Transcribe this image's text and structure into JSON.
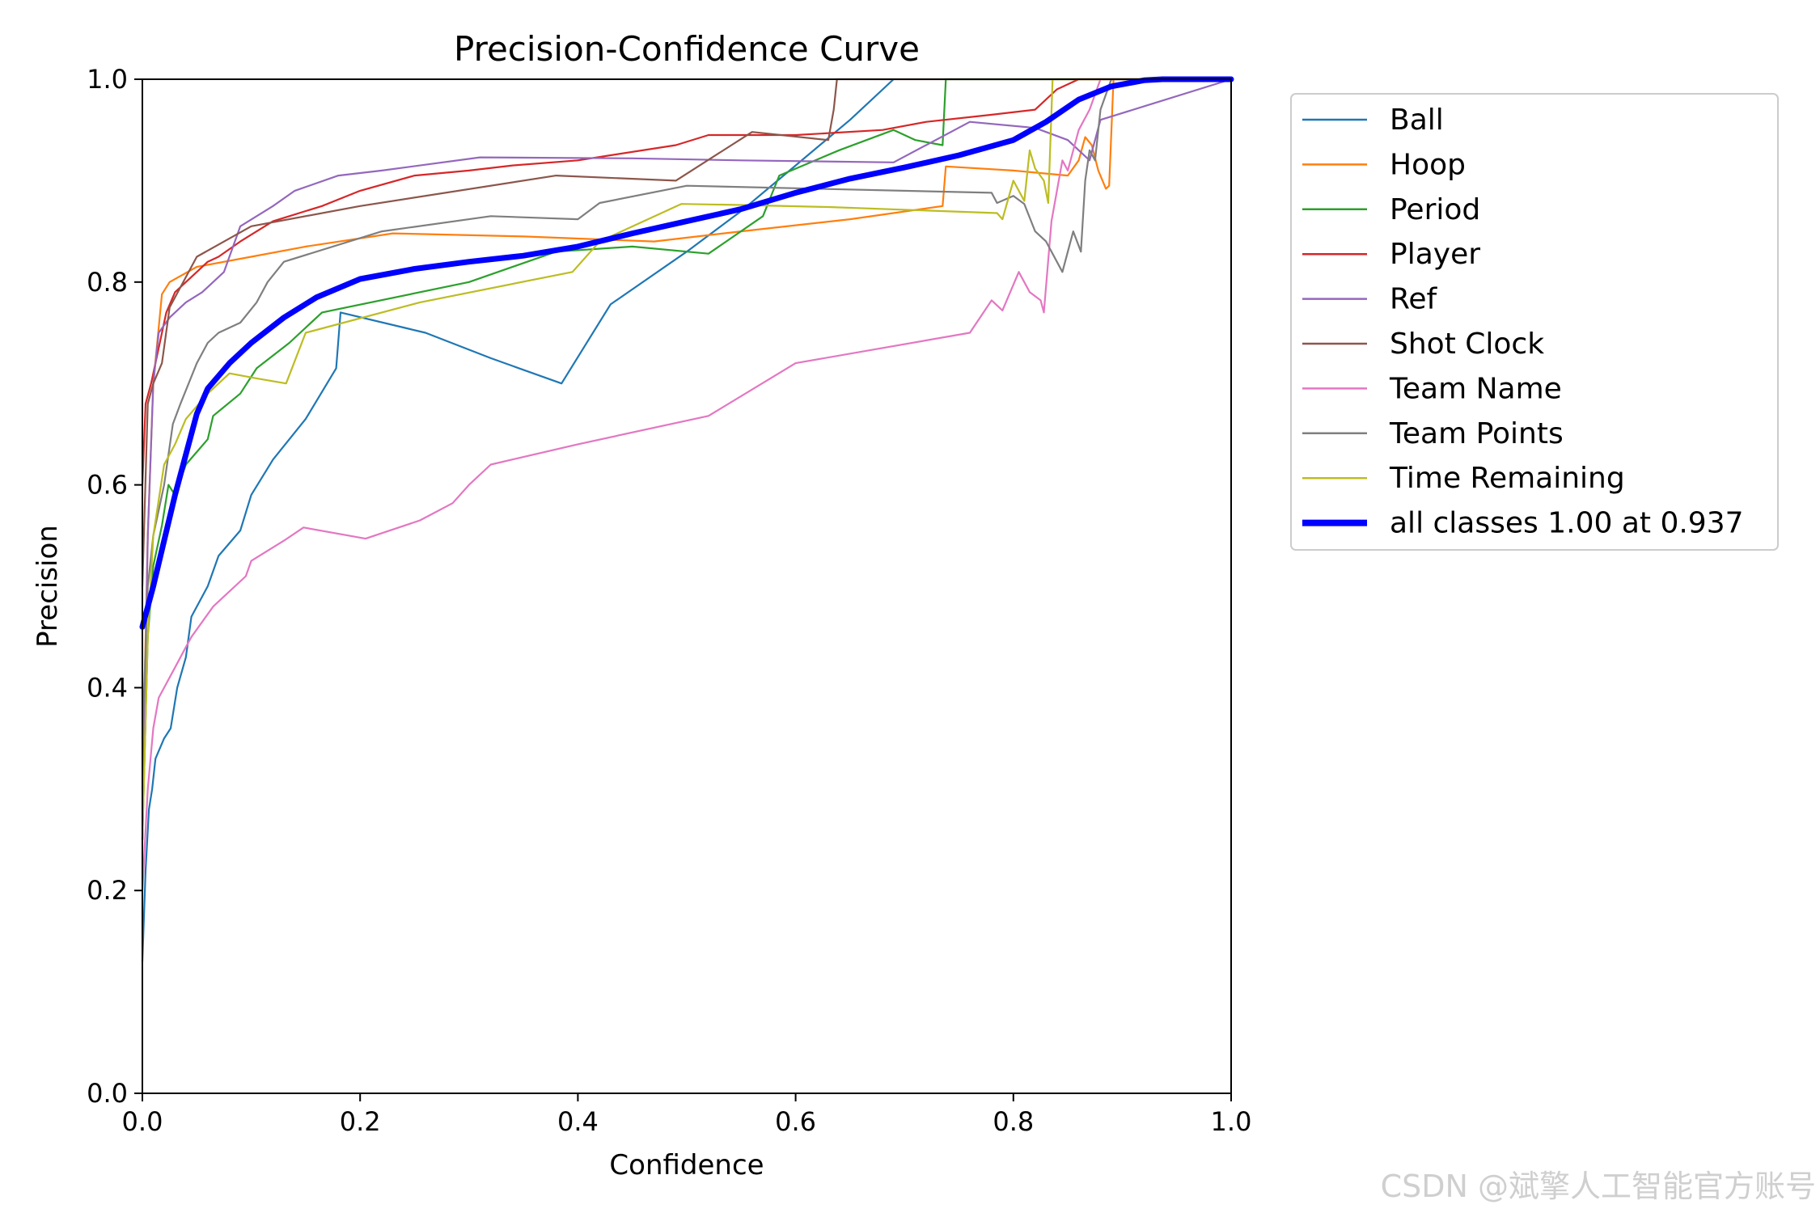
{
  "chart_data": {
    "type": "line",
    "title": "Precision-Confidence Curve",
    "xlabel": "Confidence",
    "ylabel": "Precision",
    "xlim": [
      0.0,
      1.0
    ],
    "ylim": [
      0.0,
      1.0
    ],
    "xticks": [
      "0.0",
      "0.2",
      "0.4",
      "0.6",
      "0.8",
      "1.0"
    ],
    "yticks": [
      "0.0",
      "0.2",
      "0.4",
      "0.6",
      "0.8",
      "1.0"
    ],
    "grid": false,
    "legend_position": "outside-right",
    "series": [
      {
        "name": "Ball",
        "color": "#1f77b4",
        "width": 1,
        "x": [
          0.0,
          0.003,
          0.006,
          0.009,
          0.012,
          0.02,
          0.026,
          0.032,
          0.04,
          0.045,
          0.06,
          0.07,
          0.09,
          0.1,
          0.12,
          0.15,
          0.178,
          0.182,
          0.26,
          0.32,
          0.385,
          0.43,
          0.5,
          0.55,
          0.6,
          0.65,
          0.69
        ],
        "y": [
          0.13,
          0.22,
          0.28,
          0.3,
          0.33,
          0.35,
          0.36,
          0.4,
          0.43,
          0.47,
          0.5,
          0.53,
          0.555,
          0.59,
          0.625,
          0.665,
          0.715,
          0.77,
          0.75,
          0.725,
          0.7,
          0.778,
          0.83,
          0.87,
          0.915,
          0.96,
          1.0
        ]
      },
      {
        "name": "Hoop",
        "color": "#ff7f0e",
        "width": 1,
        "x": [
          0.0,
          0.005,
          0.01,
          0.018,
          0.025,
          0.05,
          0.1,
          0.15,
          0.23,
          0.35,
          0.47,
          0.55,
          0.65,
          0.735,
          0.738,
          0.8,
          0.85,
          0.86,
          0.866,
          0.872,
          0.878,
          0.885,
          0.888,
          0.892,
          1.0
        ],
        "y": [
          0.3,
          0.55,
          0.7,
          0.788,
          0.8,
          0.815,
          0.825,
          0.835,
          0.848,
          0.845,
          0.84,
          0.85,
          0.862,
          0.875,
          0.914,
          0.91,
          0.905,
          0.92,
          0.943,
          0.935,
          0.91,
          0.892,
          0.895,
          1.0,
          1.0
        ]
      },
      {
        "name": "Period",
        "color": "#2ca02c",
        "width": 1,
        "x": [
          0.0,
          0.005,
          0.01,
          0.018,
          0.024,
          0.03,
          0.04,
          0.06,
          0.065,
          0.09,
          0.105,
          0.135,
          0.165,
          0.3,
          0.38,
          0.45,
          0.52,
          0.57,
          0.585,
          0.64,
          0.69,
          0.71,
          0.735,
          0.738,
          1.0
        ],
        "y": [
          0.25,
          0.45,
          0.52,
          0.56,
          0.6,
          0.59,
          0.62,
          0.645,
          0.668,
          0.69,
          0.715,
          0.74,
          0.77,
          0.8,
          0.83,
          0.835,
          0.828,
          0.865,
          0.905,
          0.93,
          0.95,
          0.94,
          0.935,
          1.0,
          1.0
        ]
      },
      {
        "name": "Player",
        "color": "#d62728",
        "width": 1,
        "x": [
          0.0,
          0.003,
          0.008,
          0.012,
          0.018,
          0.022,
          0.03,
          0.04,
          0.05,
          0.06,
          0.07,
          0.09,
          0.105,
          0.12,
          0.135,
          0.15,
          0.165,
          0.2,
          0.25,
          0.3,
          0.34,
          0.4,
          0.43,
          0.49,
          0.52,
          0.6,
          0.68,
          0.72,
          0.78,
          0.82,
          0.84,
          0.86,
          0.88,
          0.9,
          1.0
        ],
        "y": [
          0.6,
          0.68,
          0.7,
          0.72,
          0.75,
          0.77,
          0.79,
          0.8,
          0.81,
          0.82,
          0.825,
          0.84,
          0.85,
          0.86,
          0.865,
          0.87,
          0.875,
          0.89,
          0.905,
          0.91,
          0.915,
          0.92,
          0.925,
          0.935,
          0.945,
          0.945,
          0.95,
          0.958,
          0.965,
          0.97,
          0.99,
          1.0,
          1.0,
          1.0,
          1.0
        ]
      },
      {
        "name": "Ref",
        "color": "#9467bd",
        "width": 1,
        "x": [
          0.0,
          0.005,
          0.01,
          0.015,
          0.025,
          0.04,
          0.055,
          0.075,
          0.09,
          0.12,
          0.14,
          0.18,
          0.22,
          0.31,
          0.45,
          0.55,
          0.69,
          0.76,
          0.82,
          0.85,
          0.86,
          0.87,
          0.88,
          1.0
        ],
        "y": [
          0.25,
          0.55,
          0.7,
          0.75,
          0.765,
          0.78,
          0.79,
          0.81,
          0.855,
          0.875,
          0.89,
          0.905,
          0.91,
          0.923,
          0.922,
          0.92,
          0.918,
          0.958,
          0.952,
          0.94,
          0.93,
          0.92,
          0.96,
          1.0
        ]
      },
      {
        "name": "Shot Clock",
        "color": "#8c564b",
        "width": 1,
        "x": [
          0.0,
          0.005,
          0.01,
          0.018,
          0.025,
          0.05,
          0.1,
          0.2,
          0.38,
          0.49,
          0.56,
          0.63,
          0.635,
          0.638,
          1.0
        ],
        "y": [
          0.5,
          0.68,
          0.7,
          0.72,
          0.775,
          0.825,
          0.855,
          0.875,
          0.905,
          0.9,
          0.948,
          0.94,
          0.97,
          1.0,
          1.0
        ]
      },
      {
        "name": "Team Name",
        "color": "#e377c2",
        "width": 1,
        "x": [
          0.0,
          0.005,
          0.01,
          0.015,
          0.02,
          0.03,
          0.04,
          0.045,
          0.065,
          0.095,
          0.1,
          0.13,
          0.148,
          0.205,
          0.255,
          0.285,
          0.3,
          0.32,
          0.4,
          0.52,
          0.6,
          0.76,
          0.78,
          0.79,
          0.805,
          0.815,
          0.825,
          0.828,
          0.835,
          0.845,
          0.85,
          0.86,
          0.87,
          0.88,
          0.9,
          1.0
        ],
        "y": [
          0.2,
          0.3,
          0.36,
          0.39,
          0.4,
          0.42,
          0.44,
          0.45,
          0.48,
          0.51,
          0.525,
          0.545,
          0.558,
          0.547,
          0.565,
          0.582,
          0.6,
          0.62,
          0.64,
          0.668,
          0.72,
          0.75,
          0.782,
          0.772,
          0.81,
          0.79,
          0.782,
          0.77,
          0.86,
          0.92,
          0.91,
          0.95,
          0.97,
          1.0,
          1.0,
          1.0
        ]
      },
      {
        "name": "Team Points",
        "color": "#7f7f7f",
        "width": 1,
        "x": [
          0.0,
          0.005,
          0.01,
          0.02,
          0.028,
          0.035,
          0.05,
          0.06,
          0.07,
          0.09,
          0.105,
          0.115,
          0.13,
          0.22,
          0.32,
          0.4,
          0.42,
          0.5,
          0.78,
          0.785,
          0.8,
          0.81,
          0.82,
          0.83,
          0.845,
          0.85,
          0.855,
          0.862,
          0.866,
          0.87,
          0.875,
          0.88,
          0.89,
          1.0
        ],
        "y": [
          0.35,
          0.5,
          0.55,
          0.6,
          0.66,
          0.68,
          0.72,
          0.74,
          0.75,
          0.76,
          0.78,
          0.8,
          0.82,
          0.85,
          0.865,
          0.862,
          0.878,
          0.895,
          0.888,
          0.878,
          0.885,
          0.877,
          0.85,
          0.84,
          0.81,
          0.83,
          0.85,
          0.83,
          0.9,
          0.93,
          0.92,
          0.97,
          1.0,
          1.0
        ]
      },
      {
        "name": "Time Remaining",
        "color": "#bcbd22",
        "width": 1,
        "x": [
          0.0,
          0.005,
          0.01,
          0.02,
          0.03,
          0.04,
          0.06,
          0.08,
          0.105,
          0.132,
          0.15,
          0.255,
          0.395,
          0.42,
          0.495,
          0.55,
          0.63,
          0.785,
          0.79,
          0.8,
          0.81,
          0.815,
          0.82,
          0.828,
          0.832,
          0.836,
          1.0
        ],
        "y": [
          0.25,
          0.45,
          0.55,
          0.62,
          0.64,
          0.665,
          0.69,
          0.71,
          0.705,
          0.7,
          0.75,
          0.78,
          0.81,
          0.84,
          0.877,
          0.876,
          0.874,
          0.868,
          0.862,
          0.9,
          0.88,
          0.93,
          0.912,
          0.9,
          0.878,
          1.0,
          1.0
        ]
      },
      {
        "name": "all classes 1.00 at 0.937",
        "color": "#0000ff",
        "width": 4,
        "x": [
          0.0,
          0.01,
          0.02,
          0.03,
          0.04,
          0.05,
          0.06,
          0.08,
          0.1,
          0.13,
          0.16,
          0.2,
          0.25,
          0.3,
          0.35,
          0.4,
          0.45,
          0.5,
          0.55,
          0.6,
          0.65,
          0.7,
          0.75,
          0.8,
          0.83,
          0.86,
          0.89,
          0.92,
          0.937,
          1.0
        ],
        "y": [
          0.46,
          0.5,
          0.545,
          0.59,
          0.63,
          0.67,
          0.695,
          0.72,
          0.74,
          0.765,
          0.785,
          0.803,
          0.813,
          0.82,
          0.826,
          0.835,
          0.848,
          0.86,
          0.872,
          0.888,
          0.902,
          0.913,
          0.925,
          0.94,
          0.958,
          0.98,
          0.993,
          0.999,
          1.0,
          1.0
        ]
      }
    ]
  },
  "watermark": "CSDN @斌擎人工智能官方账号"
}
